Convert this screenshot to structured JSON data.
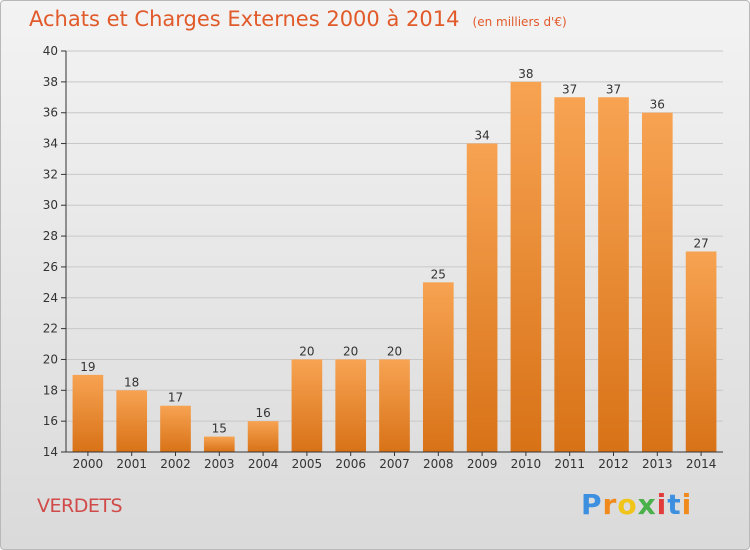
{
  "chart_data": {
    "type": "bar",
    "title": "Achats et Charges Externes 2000 à 2014",
    "subtitle": "(en milliers d'€)",
    "categories": [
      "2000",
      "2001",
      "2002",
      "2003",
      "2004",
      "2005",
      "2006",
      "2007",
      "2008",
      "2009",
      "2010",
      "2011",
      "2012",
      "2013",
      "2014"
    ],
    "values": [
      19,
      18,
      17,
      15,
      16,
      20,
      20,
      20,
      25,
      34,
      38,
      37,
      37,
      36,
      27
    ],
    "ylim": [
      14,
      40
    ],
    "yticks": [
      14,
      16,
      18,
      20,
      22,
      24,
      26,
      28,
      30,
      32,
      34,
      36,
      38,
      40
    ],
    "grid": true,
    "xlabel": "",
    "ylabel": "",
    "colors": {
      "bar_light": "#f7a352",
      "bar_dark": "#d87217",
      "grid": "#c8c8c8",
      "axis": "#333333"
    }
  },
  "place": "VERDETS",
  "logo": {
    "letters": [
      "P",
      "r",
      "o",
      "x",
      "i",
      "t",
      "i"
    ],
    "colors": [
      "#3d8fe0",
      "#f08a1c",
      "#f0c419",
      "#4ab04a",
      "#e23b3b",
      "#3d8fe0",
      "#f08a1c"
    ]
  }
}
